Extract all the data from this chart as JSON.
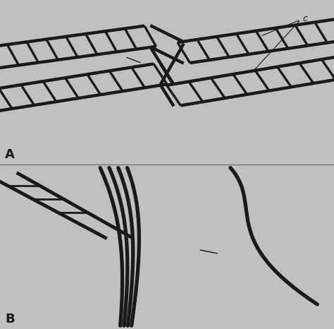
{
  "bg_color": "#c0c0c0",
  "line_color": "#1a1a1a",
  "label_A": "A",
  "label_B": "B",
  "label_C": "c",
  "fig_width": 4.74,
  "fig_height": 4.66,
  "dpi": 100
}
